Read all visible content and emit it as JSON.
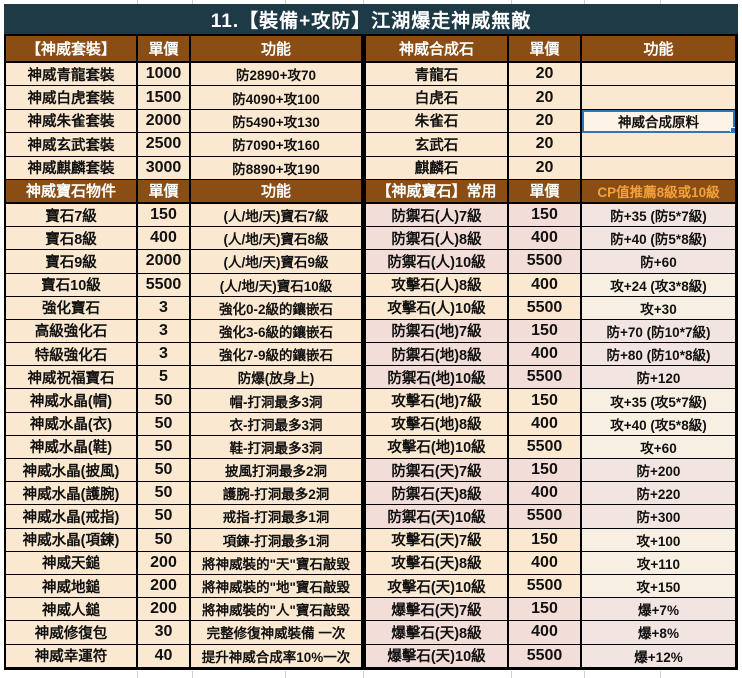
{
  "title": "11.【裝備+攻防】江湖爆走神威無敵",
  "colors": {
    "title_bar_bg": "#1d3a46",
    "header_bg": "#8a4d13",
    "cell_peach": "#fbe8d1",
    "cell_rose": "#f2ddd8",
    "cell_peach_light": "#f8efe3",
    "cell_rose_light": "#f2e4e0",
    "cp_header_text": "#f2a23c",
    "selection_border": "#2e75b6",
    "selected_cell_bg": "#fdf3e6",
    "grid_border": "#000000"
  },
  "selection": {
    "selected_cell_text": "神威合成原料"
  },
  "left_table": {
    "sections": [
      {
        "header": {
          "name": "【神威套裝】",
          "price": "單價",
          "func": "功能"
        },
        "rows": [
          {
            "name": "神威青龍套裝",
            "price": "1000",
            "func": "防2890+攻70"
          },
          {
            "name": "神威白虎套裝",
            "price": "1500",
            "func": "防4090+攻100"
          },
          {
            "name": "神威朱雀套裝",
            "price": "2000",
            "func": "防5490+攻130"
          },
          {
            "name": "神威玄武套裝",
            "price": "2500",
            "func": "防7090+攻160"
          },
          {
            "name": "神威麒麟套裝",
            "price": "3000",
            "func": "防8890+攻190"
          }
        ]
      },
      {
        "header": {
          "name": "神威寶石物件",
          "price": "單價",
          "func": "功能"
        },
        "rows": [
          {
            "name": "寶石7級",
            "price": "150",
            "func": "(人/地/天)寶石7級"
          },
          {
            "name": "寶石8級",
            "price": "400",
            "func": "(人/地/天)寶石8級"
          },
          {
            "name": "寶石9級",
            "price": "2000",
            "func": "(人/地/天)寶石9級"
          },
          {
            "name": "寶石10級",
            "price": "5500",
            "func": "(人/地/天)寶石10級"
          },
          {
            "name": "強化寶石",
            "price": "3",
            "func": "強化0-2級的鑲嵌石"
          },
          {
            "name": "高級強化石",
            "price": "3",
            "func": "強化3-6級的鑲嵌石"
          },
          {
            "name": "特級強化石",
            "price": "3",
            "func": "強化7-9級的鑲嵌石"
          },
          {
            "name": "神威祝福寶石",
            "price": "5",
            "func": "防爆(放身上)"
          },
          {
            "name": "神威水晶(帽)",
            "price": "50",
            "func": "帽-打洞最多3洞"
          },
          {
            "name": "神威水晶(衣)",
            "price": "50",
            "func": "衣-打洞最多3洞"
          },
          {
            "name": "神威水晶(鞋)",
            "price": "50",
            "func": "鞋-打洞最多3洞"
          },
          {
            "name": "神威水晶(披風)",
            "price": "50",
            "func": "披風打洞最多2洞"
          },
          {
            "name": "神威水晶(護腕)",
            "price": "50",
            "func": "護腕-打洞最多2洞"
          },
          {
            "name": "神威水晶(戒指)",
            "price": "50",
            "func": "戒指-打洞最多1洞"
          },
          {
            "name": "神威水晶(項鍊)",
            "price": "50",
            "func": "項鍊-打洞最多1洞"
          },
          {
            "name": "神威天鎚",
            "price": "200",
            "func": "將神威裝的\"天\"寶石敲毀"
          },
          {
            "name": "神威地鎚",
            "price": "200",
            "func": "將神威裝的\"地\"寶石敲毀"
          },
          {
            "name": "神威人鎚",
            "price": "200",
            "func": "將神威裝的\"人\"寶石敲毀"
          },
          {
            "name": "神威修復包",
            "price": "30",
            "func": "完整修復神威裝備 一次"
          },
          {
            "name": "神威幸運符",
            "price": "40",
            "func": "提升神威合成率10%一次"
          }
        ]
      }
    ]
  },
  "right_table": {
    "sections": [
      {
        "header": {
          "name": "神威合成石",
          "price": "單價",
          "func": "功能"
        },
        "rows": [
          {
            "name": "青龍石",
            "price": "20",
            "func": ""
          },
          {
            "name": "白虎石",
            "price": "20",
            "func": ""
          },
          {
            "name": "朱雀石",
            "price": "20",
            "func": "神威合成原料",
            "selected": true
          },
          {
            "name": "玄武石",
            "price": "20",
            "func": ""
          },
          {
            "name": "麒麟石",
            "price": "20",
            "func": ""
          }
        ]
      },
      {
        "header": {
          "name": "【神威寶石】常用",
          "price": "單價",
          "func": "CP值推薦8級或10級",
          "func_accent": true
        },
        "func_light": true,
        "rows": [
          {
            "name": "防禦石(人)7級",
            "price": "150",
            "func": "防+35 (防5*7級)",
            "tone": "rose"
          },
          {
            "name": "防禦石(人)8級",
            "price": "400",
            "func": "防+40 (防5*8級)",
            "tone": "rose"
          },
          {
            "name": "防禦石(人)10級",
            "price": "5500",
            "func": "防+60",
            "tone": "rose"
          },
          {
            "name": "攻擊石(人)8級",
            "price": "400",
            "func": "攻+24 (攻3*8級)",
            "tone": "peach"
          },
          {
            "name": "攻擊石(人)10級",
            "price": "5500",
            "func": "攻+30",
            "tone": "peach"
          },
          {
            "name": "防禦石(地)7級",
            "price": "150",
            "func": "防+70 (防10*7級)",
            "tone": "rose"
          },
          {
            "name": "防禦石(地)8級",
            "price": "400",
            "func": "防+80 (防10*8級)",
            "tone": "rose"
          },
          {
            "name": "防禦石(地)10級",
            "price": "5500",
            "func": "防+120",
            "tone": "rose"
          },
          {
            "name": "攻擊石(地)7級",
            "price": "150",
            "func": "攻+35 (攻5*7級)",
            "tone": "peach"
          },
          {
            "name": "攻擊石(地)8級",
            "price": "400",
            "func": "攻+40 (攻5*8級)",
            "tone": "peach"
          },
          {
            "name": "攻擊石(地)10級",
            "price": "5500",
            "func": "攻+60",
            "tone": "peach"
          },
          {
            "name": "防禦石(天)7級",
            "price": "150",
            "func": "防+200",
            "tone": "rose"
          },
          {
            "name": "防禦石(天)8級",
            "price": "400",
            "func": "防+220",
            "tone": "rose"
          },
          {
            "name": "防禦石(天)10級",
            "price": "5500",
            "func": "防+300",
            "tone": "rose"
          },
          {
            "name": "攻擊石(天)7級",
            "price": "150",
            "func": "攻+100",
            "tone": "peach"
          },
          {
            "name": "攻擊石(天)8級",
            "price": "400",
            "func": "攻+110",
            "tone": "peach"
          },
          {
            "name": "攻擊石(天)10級",
            "price": "5500",
            "func": "攻+150",
            "tone": "peach"
          },
          {
            "name": "爆擊石(天)7級",
            "price": "150",
            "func": "爆+7%",
            "tone": "rose"
          },
          {
            "name": "爆擊石(天)8級",
            "price": "400",
            "func": "爆+8%",
            "tone": "rose"
          },
          {
            "name": "爆擊石(天)10級",
            "price": "5500",
            "func": "爆+12%",
            "tone": "rose"
          }
        ]
      }
    ]
  }
}
